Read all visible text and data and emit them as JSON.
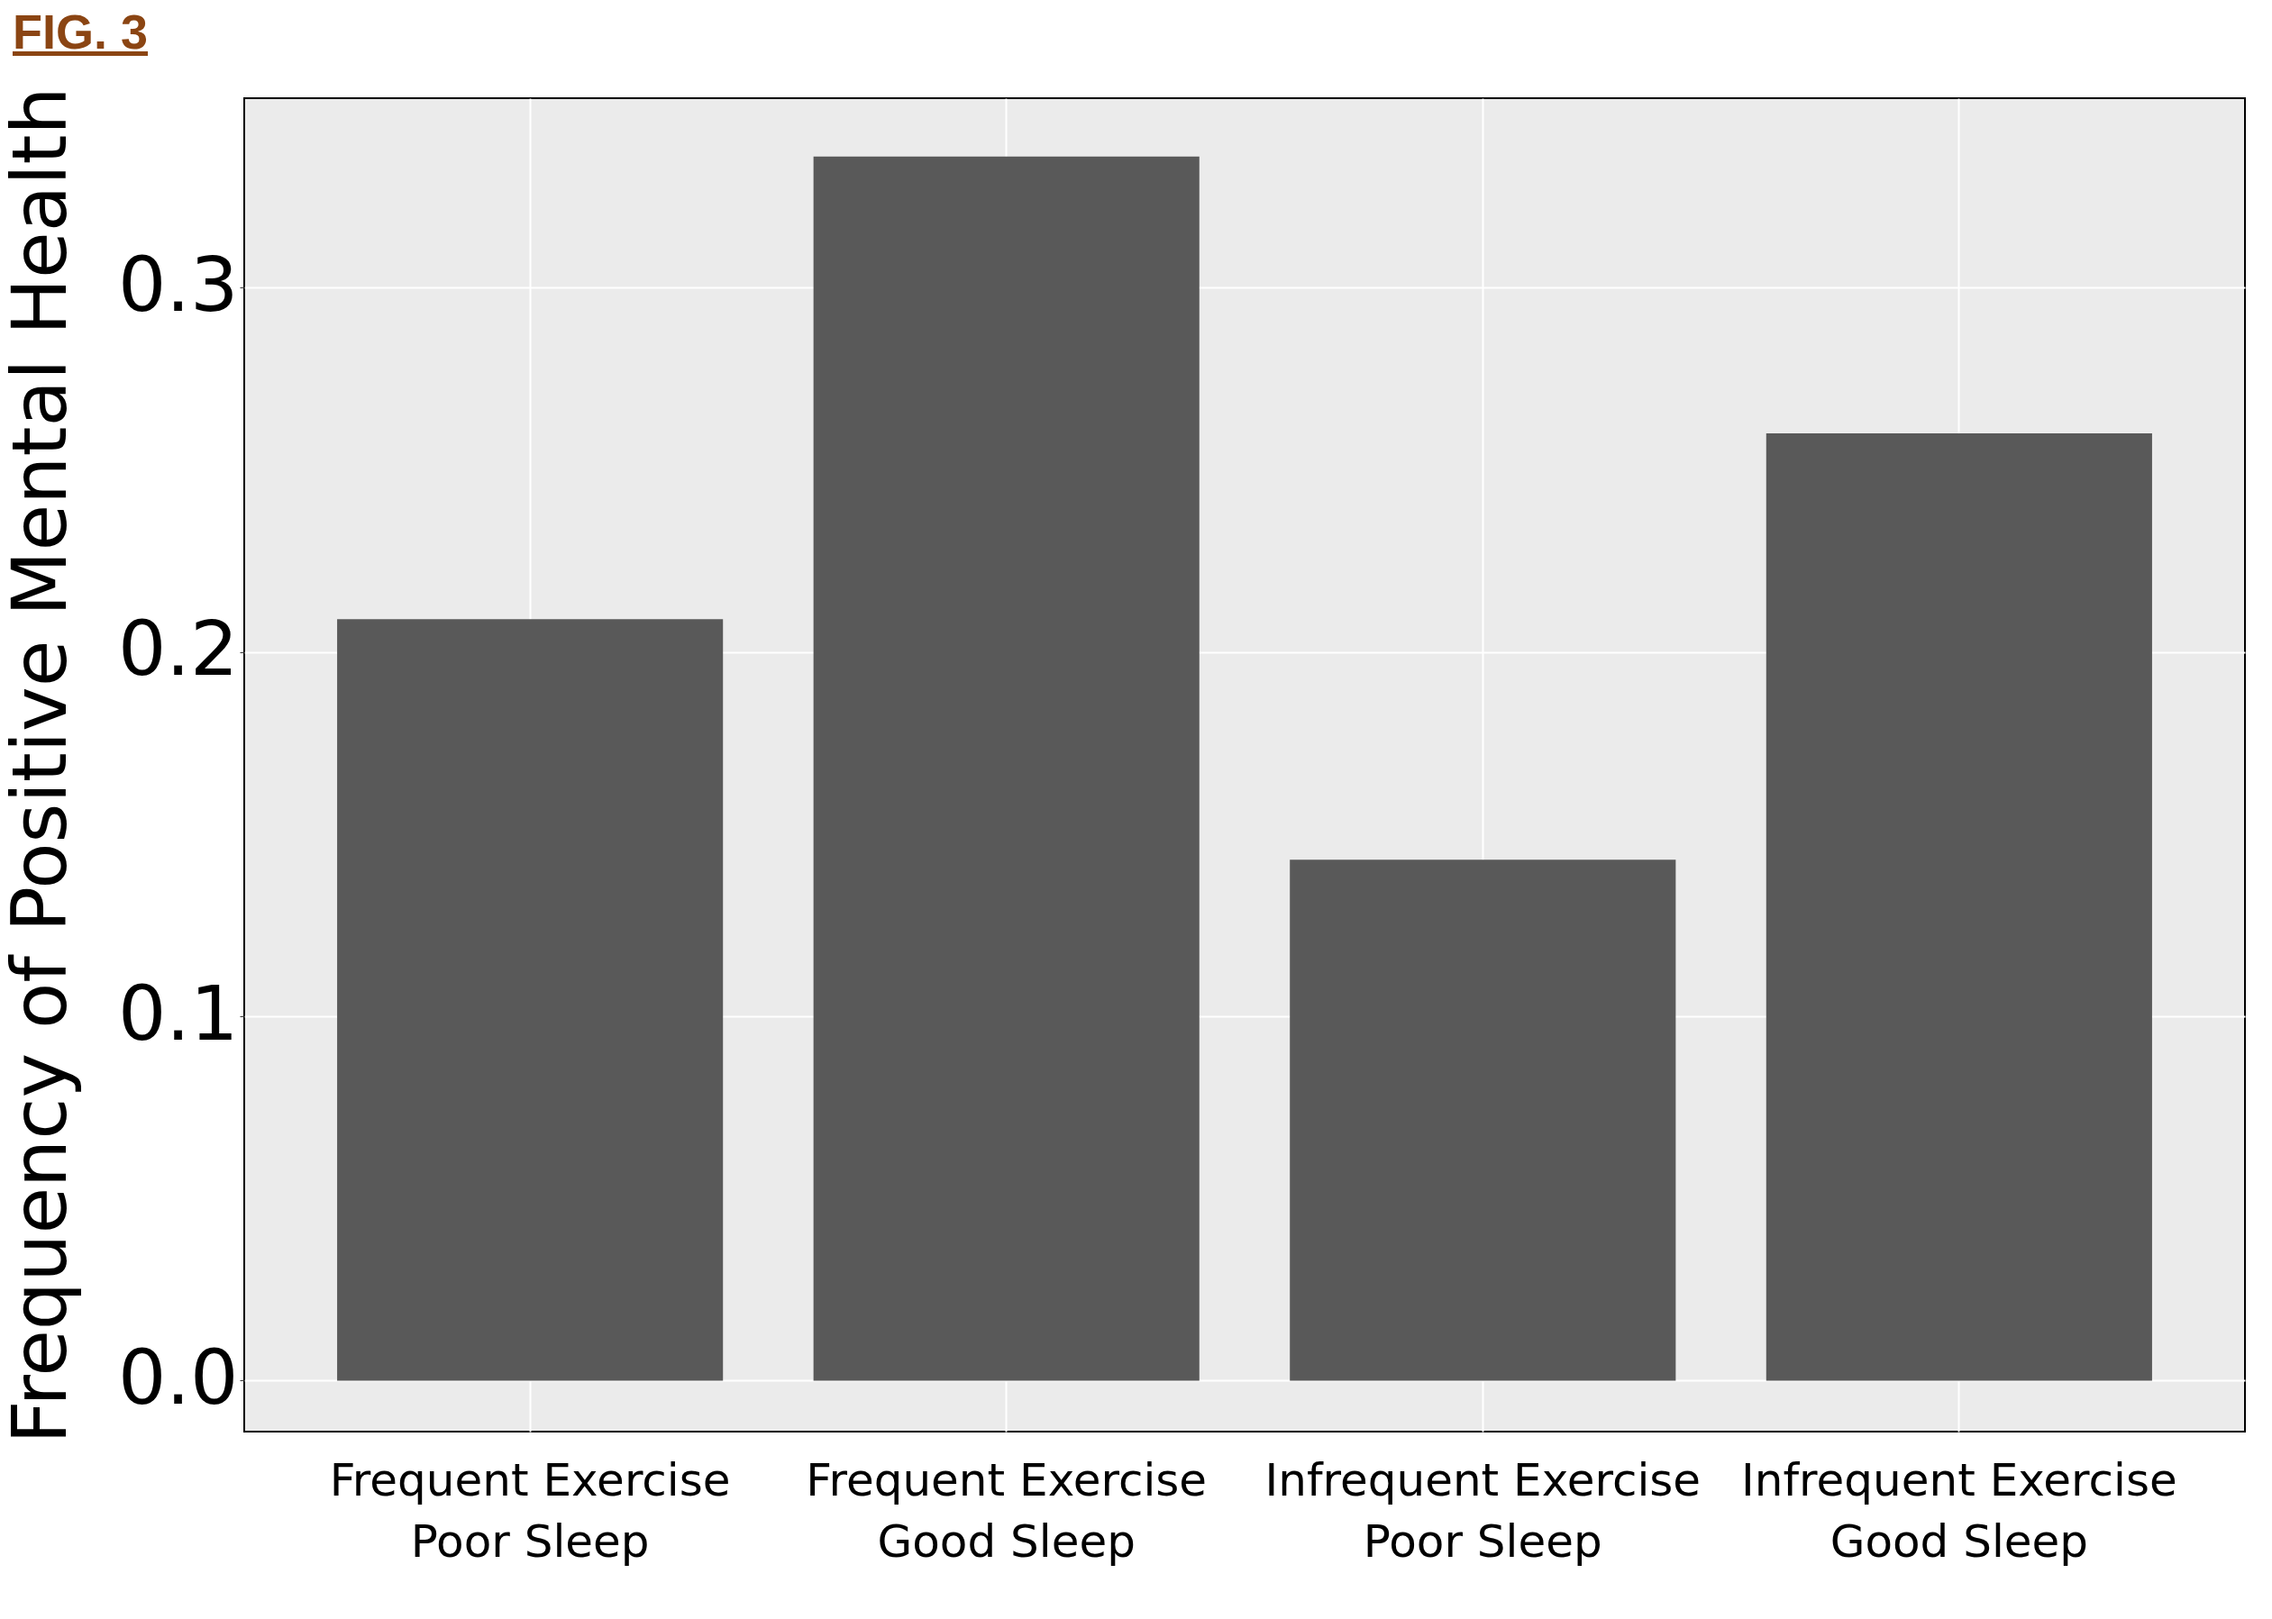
{
  "chart_data": {
    "type": "bar",
    "ylabel": "Frequency of Positive Mental Health",
    "annotations": [
      "FIG. 3"
    ],
    "categories": [
      "Frequent Exercise\nPoor Sleep",
      "Frequent Exercise\nGood Sleep",
      "Infrequent Exercise\nPoor Sleep",
      "Infrequent Exercise\nGood Sleep"
    ],
    "values": [
      0.209,
      0.336,
      0.143,
      0.26
    ],
    "color": "#595959",
    "ylim": [
      -0.014,
      0.352
    ],
    "yticks": [
      {
        "value": 0,
        "label": "0.0"
      },
      {
        "value": 0.1,
        "label": "0.1"
      },
      {
        "value": 0.2,
        "label": "0.2"
      },
      {
        "value": 0.3,
        "label": "0.3"
      }
    ],
    "grid": true
  }
}
